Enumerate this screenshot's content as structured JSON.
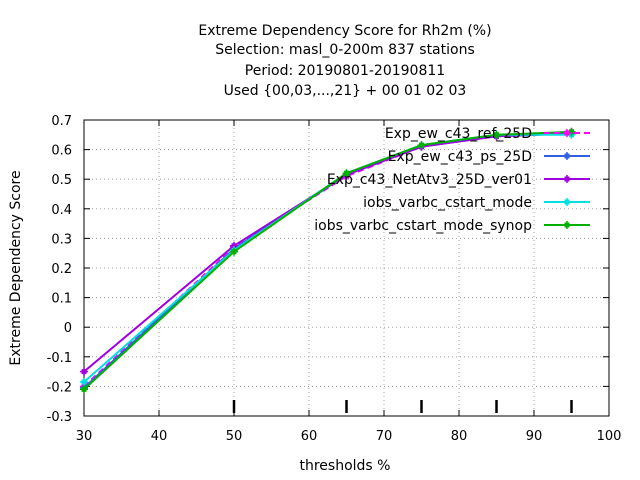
{
  "chart_data": {
    "type": "line",
    "title_lines": [
      "Extreme Dependency Score  for Rh2m (%)",
      "Selection: masl_0-200m    837 stations",
      "Period: 20190801-20190811",
      "Used {00,03,...,21} + 00 01 02 03"
    ],
    "xlabel": "thresholds %",
    "ylabel": "Extreme Dependency Score",
    "xlim": [
      30,
      100
    ],
    "ylim": [
      -0.3,
      0.7
    ],
    "xticks": [
      "30",
      "40",
      "50",
      "60",
      "70",
      "80",
      "90",
      "100"
    ],
    "yticks": [
      "-0.3",
      "-0.2",
      "-0.1",
      "0",
      "0.1",
      "0.2",
      "0.3",
      "0.4",
      "0.5",
      "0.6",
      "0.7"
    ],
    "grid": true,
    "legend_position": "top-right",
    "sample_marker_x": [
      50,
      65,
      75,
      85,
      95
    ],
    "series": [
      {
        "name": "Exp_ew_c43_ref_25D",
        "color": "#ff00ff",
        "dash": true,
        "x": [
          30,
          50,
          65,
          75,
          85,
          95
        ],
        "y": [
          -0.2,
          0.27,
          0.51,
          0.61,
          0.645,
          0.66
        ]
      },
      {
        "name": "Exp_ew_c43_ps_25D",
        "color": "#3060e0",
        "x": [
          30,
          50,
          65,
          75,
          85,
          95
        ],
        "y": [
          -0.205,
          0.265,
          0.515,
          0.61,
          0.645,
          0.655
        ]
      },
      {
        "name": "Exp_c43_NetAtv3_25D_ver01",
        "color": "#a000e0",
        "x": [
          30,
          50,
          65,
          75,
          85,
          95
        ],
        "y": [
          -0.15,
          0.275,
          0.515,
          0.61,
          0.645,
          0.655
        ]
      },
      {
        "name": "iobs_varbc_cstart_mode",
        "color": "#00e0e0",
        "x": [
          30,
          50,
          65,
          75,
          85,
          95
        ],
        "y": [
          -0.185,
          0.26,
          0.52,
          0.615,
          0.65,
          0.65
        ]
      },
      {
        "name": "iobs_varbc_cstart_mode_synop",
        "color": "#00b000",
        "x": [
          30,
          50,
          65,
          75,
          85,
          95
        ],
        "y": [
          -0.21,
          0.255,
          0.52,
          0.615,
          0.65,
          0.66
        ]
      }
    ]
  }
}
